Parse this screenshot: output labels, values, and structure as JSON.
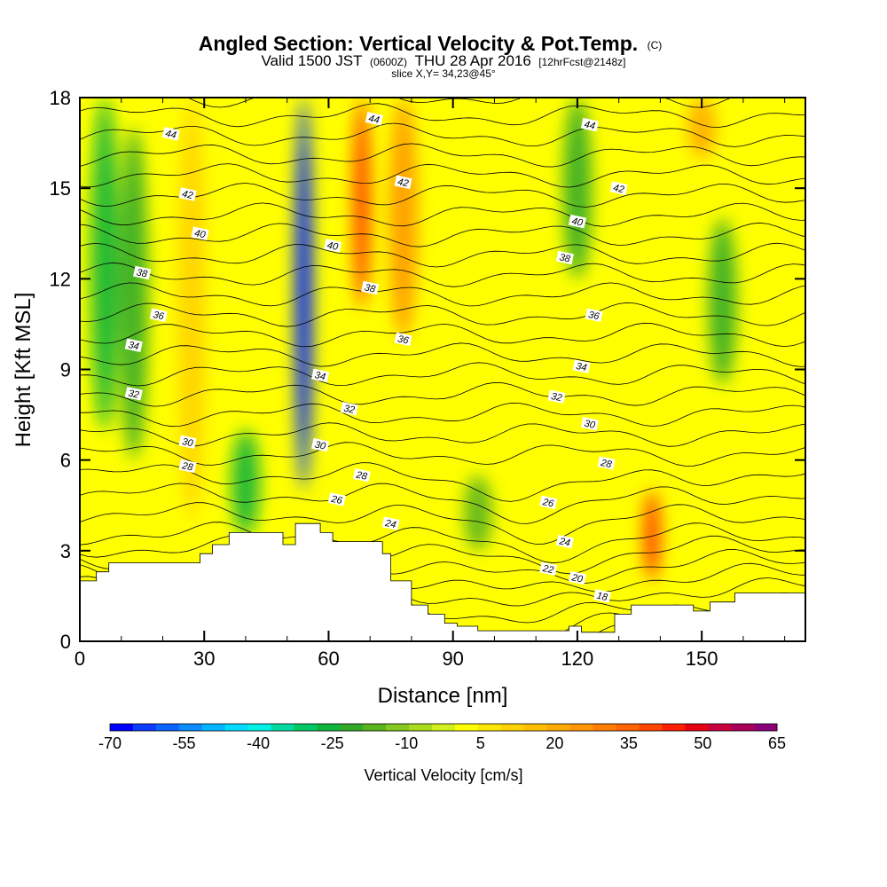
{
  "title": "Angled Section: Vertical Velocity & Pot.Temp.",
  "title_unit": "(C)",
  "subtitle": {
    "valid": "Valid 1500 JST",
    "utc": "(0600Z)",
    "date": "THU 28 Apr 2016",
    "forecast": "[12hrFcst@2148z]"
  },
  "slice": "slice X,Y= 34,23@45°",
  "chart_data": {
    "type": "heatmap",
    "xlabel": "Distance [nm]",
    "ylabel": "Height [Kft MSL]",
    "xlim": [
      0,
      175
    ],
    "ylim": [
      0,
      18
    ],
    "x_ticks": [
      "0",
      "30",
      "60",
      "90",
      "120",
      "150"
    ],
    "y_ticks": [
      "0",
      "3",
      "6",
      "9",
      "12",
      "15",
      "18"
    ],
    "colorbar": {
      "label": "Vertical Velocity [cm/s]",
      "tick_labels": [
        "-70",
        "-55",
        "-40",
        "-25",
        "-10",
        "5",
        "20",
        "35",
        "50",
        "65"
      ],
      "min": -70,
      "max": 65,
      "step": 5,
      "colors": [
        "#0000ff",
        "#0a3cff",
        "#0a64ff",
        "#0a8cff",
        "#00b4ff",
        "#00dcff",
        "#00f0e6",
        "#00dca0",
        "#00c864",
        "#10b43c",
        "#32aa28",
        "#5ab41e",
        "#82c81e",
        "#aadc1e",
        "#d2f01e",
        "#ffff00",
        "#ffe600",
        "#ffd200",
        "#ffbe00",
        "#ffaa00",
        "#ff9600",
        "#ff7d00",
        "#ff6400",
        "#ff4600",
        "#ff1e00",
        "#e60014",
        "#c8003c",
        "#aa005a",
        "#8c0078"
      ]
    },
    "velocity_features": [
      {
        "x": 6,
        "y_range": [
          7,
          18
        ],
        "value": -25
      },
      {
        "x": 13,
        "y_range": [
          6,
          17
        ],
        "value": -20
      },
      {
        "x": 27,
        "y_range": [
          4,
          18
        ],
        "value": 15
      },
      {
        "x": 40,
        "y_range": [
          3.5,
          7
        ],
        "value": -25
      },
      {
        "x": 54,
        "y_range": [
          5,
          18
        ],
        "value": -65
      },
      {
        "x": 68,
        "y_range": [
          11,
          18
        ],
        "value": 45
      },
      {
        "x": 78,
        "y_range": [
          10,
          18
        ],
        "value": 30
      },
      {
        "x": 96,
        "y_range": [
          3,
          5.5
        ],
        "value": -15
      },
      {
        "x": 120,
        "y_range": [
          12,
          18
        ],
        "value": -20
      },
      {
        "x": 155,
        "y_range": [
          8.5,
          14
        ],
        "value": -20
      },
      {
        "x": 138,
        "y_range": [
          2,
          5
        ],
        "value": 45
      },
      {
        "x": 150,
        "y_range": [
          16,
          18
        ],
        "value": 25
      }
    ],
    "terrain": [
      [
        0,
        2
      ],
      [
        4,
        2
      ],
      [
        4,
        2.3
      ],
      [
        7,
        2.3
      ],
      [
        7,
        2.6
      ],
      [
        29,
        2.6
      ],
      [
        29,
        2.9
      ],
      [
        32,
        2.9
      ],
      [
        32,
        3.2
      ],
      [
        36,
        3.2
      ],
      [
        36,
        3.6
      ],
      [
        49,
        3.6
      ],
      [
        49,
        3.2
      ],
      [
        52,
        3.2
      ],
      [
        52,
        3.9
      ],
      [
        58,
        3.9
      ],
      [
        58,
        3.6
      ],
      [
        61,
        3.6
      ],
      [
        61,
        3.3
      ],
      [
        73,
        3.3
      ],
      [
        73,
        2.9
      ],
      [
        75,
        2.9
      ],
      [
        75,
        2.0
      ],
      [
        80,
        2.0
      ],
      [
        80,
        1.2
      ],
      [
        84,
        1.2
      ],
      [
        84,
        0.9
      ],
      [
        88,
        0.9
      ],
      [
        88,
        0.6
      ],
      [
        91,
        0.6
      ],
      [
        91,
        0.5
      ],
      [
        96,
        0.5
      ],
      [
        96,
        0.35
      ],
      [
        118,
        0.35
      ],
      [
        118,
        0.5
      ],
      [
        121,
        0.5
      ],
      [
        121,
        0.3
      ],
      [
        129,
        0.3
      ],
      [
        129,
        0.9
      ],
      [
        133,
        0.9
      ],
      [
        133,
        1.2
      ],
      [
        148,
        1.2
      ],
      [
        148,
        1.0
      ],
      [
        152,
        1.0
      ],
      [
        152,
        1.3
      ],
      [
        158,
        1.3
      ],
      [
        158,
        1.6
      ],
      [
        176,
        1.6
      ]
    ],
    "theta_contours": [
      {
        "value": "18",
        "lx": 126,
        "ly": 1.5
      },
      {
        "value": "20",
        "lx": 120,
        "ly": 2.1
      },
      {
        "value": "22",
        "lx": 113,
        "ly": 2.4
      },
      {
        "value": "24",
        "lx": 75,
        "ly": 3.9
      },
      {
        "value": "24",
        "lx": 117,
        "ly": 3.3
      },
      {
        "value": "26",
        "lx": 62,
        "ly": 4.7
      },
      {
        "value": "26",
        "lx": 113,
        "ly": 4.6
      },
      {
        "value": "28",
        "lx": 26,
        "ly": 5.8
      },
      {
        "value": "28",
        "lx": 68,
        "ly": 5.5
      },
      {
        "value": "28",
        "lx": 127,
        "ly": 5.9
      },
      {
        "value": "30",
        "lx": 26,
        "ly": 6.6
      },
      {
        "value": "30",
        "lx": 58,
        "ly": 6.5
      },
      {
        "value": "30",
        "lx": 123,
        "ly": 7.2
      },
      {
        "value": "32",
        "lx": 13,
        "ly": 8.2
      },
      {
        "value": "32",
        "lx": 65,
        "ly": 7.7
      },
      {
        "value": "32",
        "lx": 115,
        "ly": 8.1
      },
      {
        "value": "34",
        "lx": 13,
        "ly": 9.8
      },
      {
        "value": "34",
        "lx": 58,
        "ly": 8.8
      },
      {
        "value": "34",
        "lx": 121,
        "ly": 9.1
      },
      {
        "value": "36",
        "lx": 19,
        "ly": 10.8
      },
      {
        "value": "36",
        "lx": 78,
        "ly": 10
      },
      {
        "value": "36",
        "lx": 124,
        "ly": 10.8
      },
      {
        "value": "38",
        "lx": 15,
        "ly": 12.2
      },
      {
        "value": "38",
        "lx": 70,
        "ly": 11.7
      },
      {
        "value": "38",
        "lx": 117,
        "ly": 12.7
      },
      {
        "value": "40",
        "lx": 29,
        "ly": 13.5
      },
      {
        "value": "40",
        "lx": 61,
        "ly": 13.1
      },
      {
        "value": "40",
        "lx": 120,
        "ly": 13.9
      },
      {
        "value": "42",
        "lx": 26,
        "ly": 14.8
      },
      {
        "value": "42",
        "lx": 78,
        "ly": 15.2
      },
      {
        "value": "42",
        "lx": 130,
        "ly": 15
      },
      {
        "value": "44",
        "lx": 22,
        "ly": 16.8
      },
      {
        "value": "44",
        "lx": 71,
        "ly": 17.3
      },
      {
        "value": "44",
        "lx": 123,
        "ly": 17.1
      }
    ]
  }
}
